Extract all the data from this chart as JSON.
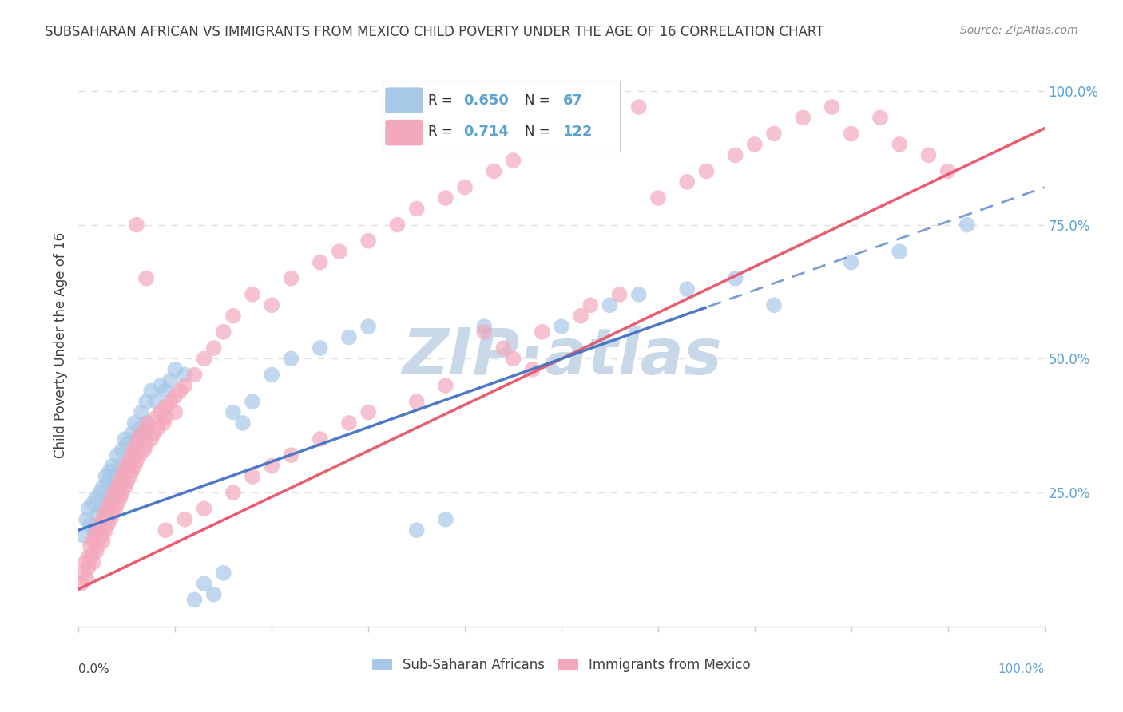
{
  "title": "SUBSAHARAN AFRICAN VS IMMIGRANTS FROM MEXICO CHILD POVERTY UNDER THE AGE OF 16 CORRELATION CHART",
  "source": "Source: ZipAtlas.com",
  "ylabel": "Child Poverty Under the Age of 16",
  "legend_blue_r": "0.650",
  "legend_blue_n": "67",
  "legend_pink_r": "0.714",
  "legend_pink_n": "122",
  "legend_label_blue": "Sub-Saharan Africans",
  "legend_label_pink": "Immigrants from Mexico",
  "blue_color": "#A8C8E8",
  "pink_color": "#F4A8BC",
  "line_blue_color": "#4472C4",
  "line_pink_color": "#E8546A",
  "watermark_color": "#C8D8E8",
  "right_tick_color": "#5BA3D0",
  "background_color": "#FFFFFF",
  "title_color": "#404040",
  "source_color": "#888888",
  "label_color": "#404040",
  "grid_color": "#E0E0E0",
  "blue_x": [
    0.005,
    0.008,
    0.01,
    0.012,
    0.015,
    0.016,
    0.018,
    0.02,
    0.022,
    0.025,
    0.025,
    0.028,
    0.03,
    0.03,
    0.032,
    0.033,
    0.035,
    0.037,
    0.038,
    0.04,
    0.04,
    0.042,
    0.045,
    0.045,
    0.048,
    0.05,
    0.052,
    0.055,
    0.056,
    0.058,
    0.06,
    0.063,
    0.065,
    0.068,
    0.07,
    0.07,
    0.075,
    0.08,
    0.085,
    0.09,
    0.095,
    0.1,
    0.11,
    0.12,
    0.13,
    0.14,
    0.15,
    0.16,
    0.17,
    0.18,
    0.2,
    0.22,
    0.25,
    0.28,
    0.3,
    0.35,
    0.38,
    0.42,
    0.5,
    0.55,
    0.58,
    0.63,
    0.68,
    0.72,
    0.8,
    0.85,
    0.92
  ],
  "blue_y": [
    0.17,
    0.2,
    0.22,
    0.19,
    0.23,
    0.18,
    0.24,
    0.21,
    0.25,
    0.26,
    0.22,
    0.28,
    0.24,
    0.27,
    0.29,
    0.23,
    0.3,
    0.26,
    0.28,
    0.32,
    0.25,
    0.3,
    0.33,
    0.27,
    0.35,
    0.34,
    0.3,
    0.36,
    0.32,
    0.38,
    0.35,
    0.37,
    0.4,
    0.36,
    0.38,
    0.42,
    0.44,
    0.42,
    0.45,
    0.44,
    0.46,
    0.48,
    0.47,
    0.05,
    0.08,
    0.06,
    0.1,
    0.4,
    0.38,
    0.42,
    0.47,
    0.5,
    0.52,
    0.54,
    0.56,
    0.18,
    0.2,
    0.56,
    0.56,
    0.6,
    0.62,
    0.63,
    0.65,
    0.6,
    0.68,
    0.7,
    0.75
  ],
  "pink_x": [
    0.003,
    0.005,
    0.007,
    0.008,
    0.01,
    0.01,
    0.012,
    0.013,
    0.015,
    0.015,
    0.017,
    0.018,
    0.02,
    0.02,
    0.022,
    0.024,
    0.025,
    0.025,
    0.027,
    0.028,
    0.03,
    0.03,
    0.032,
    0.033,
    0.035,
    0.035,
    0.037,
    0.038,
    0.04,
    0.04,
    0.042,
    0.043,
    0.045,
    0.045,
    0.047,
    0.048,
    0.05,
    0.05,
    0.052,
    0.053,
    0.055,
    0.055,
    0.057,
    0.058,
    0.06,
    0.06,
    0.062,
    0.063,
    0.065,
    0.068,
    0.07,
    0.07,
    0.072,
    0.075,
    0.078,
    0.08,
    0.082,
    0.085,
    0.088,
    0.09,
    0.09,
    0.095,
    0.1,
    0.1,
    0.105,
    0.11,
    0.12,
    0.13,
    0.14,
    0.15,
    0.16,
    0.18,
    0.2,
    0.22,
    0.25,
    0.27,
    0.3,
    0.33,
    0.35,
    0.38,
    0.4,
    0.43,
    0.45,
    0.48,
    0.5,
    0.55,
    0.58,
    0.6,
    0.63,
    0.65,
    0.68,
    0.7,
    0.72,
    0.75,
    0.78,
    0.8,
    0.83,
    0.85,
    0.88,
    0.9,
    0.52,
    0.48,
    0.53,
    0.56,
    0.42,
    0.44,
    0.45,
    0.47,
    0.38,
    0.35,
    0.3,
    0.28,
    0.25,
    0.22,
    0.2,
    0.18,
    0.16,
    0.13,
    0.11,
    0.09,
    0.07,
    0.06
  ],
  "pink_y": [
    0.08,
    0.1,
    0.12,
    0.09,
    0.13,
    0.11,
    0.15,
    0.13,
    0.16,
    0.12,
    0.17,
    0.14,
    0.18,
    0.15,
    0.19,
    0.17,
    0.2,
    0.16,
    0.21,
    0.18,
    0.22,
    0.19,
    0.23,
    0.2,
    0.24,
    0.21,
    0.25,
    0.22,
    0.26,
    0.23,
    0.27,
    0.24,
    0.28,
    0.25,
    0.29,
    0.26,
    0.3,
    0.27,
    0.31,
    0.28,
    0.32,
    0.29,
    0.33,
    0.3,
    0.34,
    0.31,
    0.35,
    0.32,
    0.36,
    0.33,
    0.37,
    0.34,
    0.38,
    0.35,
    0.36,
    0.39,
    0.37,
    0.4,
    0.38,
    0.41,
    0.39,
    0.42,
    0.43,
    0.4,
    0.44,
    0.45,
    0.47,
    0.5,
    0.52,
    0.55,
    0.58,
    0.62,
    0.6,
    0.65,
    0.68,
    0.7,
    0.72,
    0.75,
    0.78,
    0.8,
    0.82,
    0.85,
    0.87,
    0.9,
    0.92,
    0.95,
    0.97,
    0.8,
    0.83,
    0.85,
    0.88,
    0.9,
    0.92,
    0.95,
    0.97,
    0.92,
    0.95,
    0.9,
    0.88,
    0.85,
    0.58,
    0.55,
    0.6,
    0.62,
    0.55,
    0.52,
    0.5,
    0.48,
    0.45,
    0.42,
    0.4,
    0.38,
    0.35,
    0.32,
    0.3,
    0.28,
    0.25,
    0.22,
    0.2,
    0.18,
    0.65,
    0.75
  ],
  "blue_line_x0": 0.0,
  "blue_line_y0": 0.18,
  "blue_line_x1": 1.0,
  "blue_line_y1": 0.82,
  "blue_line_solid_end": 0.65,
  "pink_line_x0": 0.0,
  "pink_line_y0": 0.07,
  "pink_line_x1": 1.0,
  "pink_line_y1": 0.93,
  "xlim": [
    0.0,
    1.0
  ],
  "ylim": [
    0.0,
    1.0
  ]
}
